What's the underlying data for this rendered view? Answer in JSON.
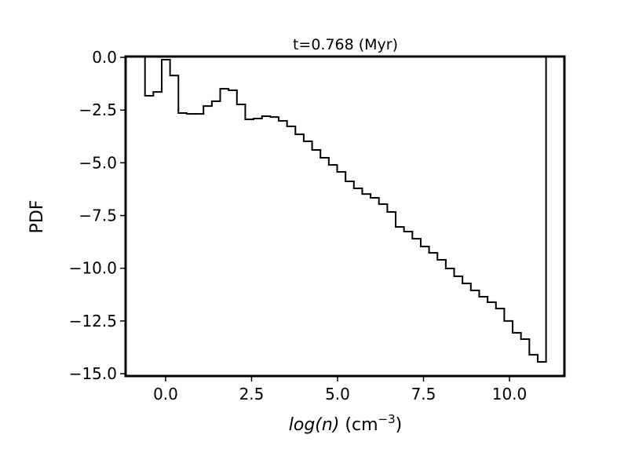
{
  "chart_data": {
    "type": "histogram",
    "title": "t=0.768 (Myr)",
    "ylabel": "PDF",
    "xlabel": [
      "log(n)",
      " (cm",
      "−3",
      ")"
    ],
    "bins": [
      -0.6,
      -0.357,
      -0.114,
      0.129,
      0.372,
      0.615,
      0.858,
      1.101,
      1.344,
      1.587,
      1.83,
      2.073,
      2.316,
      2.559,
      2.802,
      3.045,
      3.288,
      3.531,
      3.774,
      4.017,
      4.26,
      4.503,
      4.746,
      4.989,
      5.232,
      5.475,
      5.718,
      5.961,
      6.204,
      6.447,
      6.69,
      6.933,
      7.176,
      7.419,
      7.662,
      7.905,
      8.148,
      8.391,
      8.634,
      8.877,
      9.12,
      9.363,
      9.606,
      9.849,
      10.092,
      10.335,
      10.578,
      10.821,
      11.064
    ],
    "values": [
      -1.82,
      -1.64,
      -0.11,
      -0.86,
      -2.64,
      -2.68,
      -2.68,
      -2.31,
      -2.08,
      -1.49,
      -1.56,
      -2.23,
      -2.94,
      -2.9,
      -2.79,
      -2.83,
      -3.01,
      -3.27,
      -3.65,
      -3.98,
      -4.39,
      -4.76,
      -5.1,
      -5.43,
      -5.88,
      -6.21,
      -6.48,
      -6.66,
      -6.96,
      -7.33,
      -8.04,
      -8.26,
      -8.6,
      -8.97,
      -9.27,
      -9.6,
      -10.01,
      -10.38,
      -10.72,
      -11.05,
      -11.35,
      -11.61,
      -11.91,
      -12.5,
      -13.06,
      -13.36,
      -14.1,
      -14.44
    ],
    "color": "#000000",
    "xlim": [
      -1.164,
      11.598
    ],
    "ylim": [
      -15.11,
      0.04
    ],
    "xticks": [
      {
        "value": 0,
        "label": "0.0"
      },
      {
        "value": 2.5,
        "label": "2.5"
      },
      {
        "value": 5,
        "label": "5.0"
      },
      {
        "value": 7.5,
        "label": "7.5"
      },
      {
        "value": 10,
        "label": "10.0"
      }
    ],
    "yticks": [
      {
        "value": 0,
        "label": "0.0"
      },
      {
        "value": -2.5,
        "label": "−2.5"
      },
      {
        "value": -5,
        "label": "−5.0"
      },
      {
        "value": -7.5,
        "label": "−7.5"
      },
      {
        "value": -10,
        "label": "−10.0"
      },
      {
        "value": -12.5,
        "label": "−12.5"
      },
      {
        "value": -15,
        "label": "−15.0"
      }
    ],
    "grid": false
  }
}
